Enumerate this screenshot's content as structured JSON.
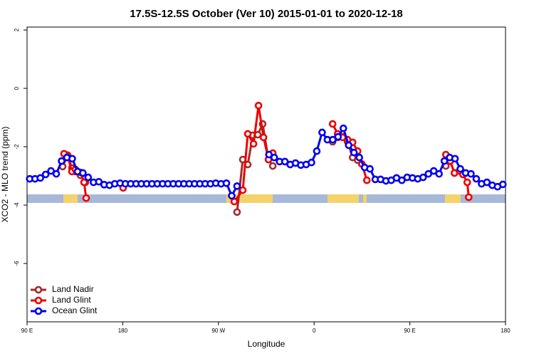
{
  "chart_data": {
    "type": "line",
    "title": "17.5S-12.5S October (Ver 10)   2015-01-01 to 2020-12-18",
    "xlabel": "Longitude",
    "ylabel": "XCO2 - MLO trend (ppm)",
    "xlim": [
      90,
      540
    ],
    "ylim": [
      -8.0,
      2.1
    ],
    "xticks": [
      {
        "value": 90,
        "label": "90 E"
      },
      180,
      {
        "value": 270,
        "label": "90 W"
      },
      {
        "value": 360,
        "label": "0"
      },
      {
        "value": 450,
        "label": "90 E"
      },
      {
        "value": 540,
        "label": "180"
      }
    ],
    "yticks": [
      2,
      0,
      -2,
      -4,
      -6
    ],
    "legend": "bottom-left",
    "series": [
      {
        "name": "Land Nadir",
        "color": "#a52a2a",
        "x": [
          123.5,
          128.2,
          132.2,
          135.5,
          140.2,
          144.9,
          null,
          287.5,
          292.9,
          297.6,
          302.3,
          307,
          311.6,
          317.1,
          321.1,
          null,
          377.4,
          382.1,
          386.8,
          391.5,
          396.2,
          400.9,
          null,
          483.9,
          487.9,
          492,
          496.7,
          500
        ],
        "values": [
          -2.68,
          -2.29,
          -2.73,
          -2.85,
          -2.98,
          -3.22,
          null,
          -4.24,
          -2.44,
          -2.61,
          -1.61,
          -1.59,
          -1.22,
          -2.44,
          -2.66,
          null,
          -1.83,
          -1.68,
          -1.66,
          -1.83,
          -2.37,
          -2.46,
          null,
          -2.66,
          -2.49,
          -2.9,
          -2.83,
          -2.93
        ]
      },
      {
        "name": "Land Glint",
        "color": "#ee0000",
        "x": [
          124.8,
          128.2,
          132.2,
          135.5,
          140.2,
          143.6,
          145.6,
          null,
          180.4,
          null,
          284.9,
          292.9,
          297.6,
          303,
          307.7,
          312.4,
          317.1,
          321.1,
          null,
          377.4,
          382.1,
          386.8,
          391.5,
          396.2,
          400.9,
          404.9,
          409.6,
          null,
          483.9,
          487.9,
          492,
          496.7,
          500,
          504,
          505.4
        ],
        "values": [
          -2.24,
          -2.34,
          -2.85,
          -2.78,
          -2.88,
          -3.22,
          -3.76,
          null,
          -3.41,
          null,
          -3.88,
          -3.49,
          -1.56,
          -1.9,
          -0.59,
          -1.68,
          -2.44,
          -2.22,
          null,
          -1.22,
          -1.56,
          -1.68,
          -1.76,
          -1.85,
          -2.15,
          -2.59,
          -3.15,
          null,
          -2.27,
          -2.49,
          -2.9,
          -2.83,
          -2.95,
          -3.22,
          -3.73
        ]
      },
      {
        "name": "Ocean Glint",
        "color": "#0000ee",
        "x": [
          92.5,
          97.5,
          102.5,
          107.5,
          112.5,
          117.5,
          122.5,
          127.5,
          132.5,
          137.5,
          142.5,
          147.5,
          152.5,
          157.5,
          162.5,
          167.5,
          172.5,
          177.5,
          182.5,
          187.5,
          192.5,
          197.5,
          202.5,
          207.5,
          212.5,
          217.5,
          222.5,
          227.5,
          232.5,
          237.5,
          242.5,
          247.5,
          252.5,
          257.5,
          262.5,
          267.5,
          272.5,
          277.5,
          282.5,
          287.5,
          292.5,
          297.5,
          302.5,
          307.5,
          312.5,
          317.5,
          322.5,
          327.5,
          332.5,
          337.5,
          342.5,
          347.5,
          352.5,
          357.5,
          362.5,
          367.5,
          372.5,
          377.5,
          382.5,
          387.5,
          392.5,
          397.5,
          402.5,
          407.5,
          412.5,
          417.5,
          422.5,
          427.5,
          432.5,
          437.5,
          442.5,
          447.5,
          452.5,
          457.5,
          462.5,
          467.5,
          472.5,
          477.5,
          482.5,
          487.5,
          492.5,
          497.5,
          502.5,
          507.5,
          512.5,
          517.5,
          522.5,
          527.5,
          532.5,
          537.5
        ],
        "values": [
          -3.1,
          -3.1,
          -3.07,
          -2.95,
          -2.83,
          -2.93,
          -2.49,
          -2.37,
          -2.41,
          -2.85,
          -2.9,
          -3.05,
          -3.22,
          -3.2,
          -3.3,
          -3.32,
          -3.27,
          -3.25,
          -3.27,
          -3.27,
          -3.27,
          -3.27,
          -3.27,
          -3.27,
          -3.27,
          -3.27,
          -3.27,
          -3.27,
          -3.27,
          -3.27,
          -3.27,
          -3.27,
          -3.27,
          -3.27,
          -3.27,
          -3.25,
          -3.27,
          -3.25,
          -3.68,
          -3.35,
          null,
          null,
          null,
          null,
          null,
          -2.27,
          -2.37,
          -2.51,
          -2.51,
          -2.61,
          -2.56,
          -2.63,
          -2.61,
          -2.54,
          -2.15,
          -1.51,
          -1.76,
          -1.76,
          -1.66,
          -1.37,
          -1.95,
          -2.2,
          -2.37,
          -2.71,
          -2.76,
          -3.12,
          -3.12,
          -3.17,
          -3.15,
          -3.07,
          -3.15,
          -3.05,
          -3.07,
          -3.1,
          -3.05,
          -2.93,
          -2.83,
          -2.93,
          -2.49,
          -2.37,
          -2.41,
          -2.76,
          -2.9,
          -2.93,
          -3.1,
          -3.27,
          -3.22,
          -3.32,
          -3.37,
          -3.29
        ]
      }
    ]
  }
}
